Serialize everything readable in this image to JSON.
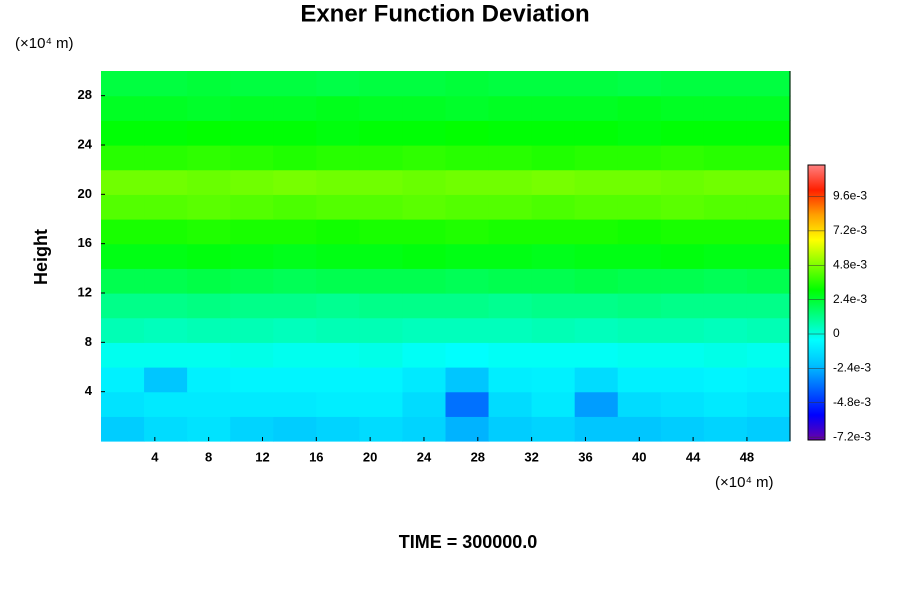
{
  "chart_data": {
    "type": "contour",
    "title": "Exner Function Deviation",
    "ylabel": "Height",
    "x_unit": "(×10⁴ m)",
    "y_unit": "(×10⁴ m)",
    "footer": "TIME = 300000.0",
    "x": [
      1.6,
      4.8,
      8.0,
      11.2,
      14.4,
      17.6,
      20.8,
      24.0,
      27.2,
      30.4,
      33.6,
      36.8,
      40.0,
      43.2,
      46.4,
      49.6
    ],
    "y": [
      1,
      3,
      5,
      7,
      9,
      11,
      13,
      15,
      17,
      19,
      21,
      23,
      25,
      27,
      29
    ],
    "z": [
      [
        -0.0018,
        -0.0014,
        -0.0012,
        -0.0016,
        -0.0018,
        -0.0016,
        -0.0014,
        -0.0016,
        -0.0024,
        -0.0018,
        -0.0016,
        -0.002,
        -0.002,
        -0.0018,
        -0.0016,
        -0.0018
      ],
      [
        -0.0012,
        -0.001,
        -0.001,
        -0.001,
        -0.001,
        -0.0009,
        -0.0009,
        -0.0014,
        -0.0036,
        -0.0014,
        -0.001,
        -0.0028,
        -0.0014,
        -0.0012,
        -0.001,
        -0.0012
      ],
      [
        -0.0008,
        -0.002,
        -0.0008,
        -0.0007,
        -0.0007,
        -0.0007,
        -0.0007,
        -0.001,
        -0.002,
        -0.0009,
        -0.0008,
        -0.0014,
        -0.0008,
        -0.0008,
        -0.0007,
        -0.0008
      ],
      [
        -0.0002,
        -0.0002,
        -0.0002,
        -0.0001,
        -0.0002,
        -0.0002,
        -0.0001,
        -0.0003,
        -0.0004,
        -0.0003,
        -0.0003,
        -0.0003,
        -0.0002,
        -0.0002,
        -0.0001,
        -0.0002
      ],
      [
        0.0006,
        0.0005,
        0.0006,
        0.0006,
        0.0005,
        0.0006,
        0.0006,
        0.0005,
        0.0005,
        0.0005,
        0.0006,
        0.0005,
        0.0006,
        0.0006,
        0.0005,
        0.0006
      ],
      [
        0.0012,
        0.0012,
        0.0013,
        0.0012,
        0.0012,
        0.0011,
        0.0012,
        0.0012,
        0.0012,
        0.0011,
        0.0012,
        0.0012,
        0.0013,
        0.0012,
        0.0012,
        0.0012
      ],
      [
        0.002,
        0.002,
        0.0021,
        0.002,
        0.0019,
        0.002,
        0.002,
        0.002,
        0.0019,
        0.002,
        0.002,
        0.0021,
        0.002,
        0.002,
        0.0019,
        0.002
      ],
      [
        0.0028,
        0.0028,
        0.0029,
        0.0028,
        0.0027,
        0.0028,
        0.0028,
        0.0029,
        0.0028,
        0.0028,
        0.0027,
        0.0028,
        0.0028,
        0.0029,
        0.0028,
        0.0028
      ],
      [
        0.0034,
        0.0034,
        0.0035,
        0.0034,
        0.0034,
        0.0033,
        0.0034,
        0.0034,
        0.0035,
        0.0034,
        0.0034,
        0.0034,
        0.0033,
        0.0034,
        0.0034,
        0.0034
      ],
      [
        0.0042,
        0.0042,
        0.0043,
        0.0042,
        0.0041,
        0.0042,
        0.0042,
        0.0043,
        0.0042,
        0.0042,
        0.0041,
        0.0042,
        0.0042,
        0.0043,
        0.0042,
        0.0042
      ],
      [
        0.0046,
        0.0046,
        0.0045,
        0.0046,
        0.0047,
        0.0046,
        0.0046,
        0.0045,
        0.0046,
        0.0046,
        0.0047,
        0.0046,
        0.0046,
        0.0045,
        0.0046,
        0.0046
      ],
      [
        0.0036,
        0.0036,
        0.0037,
        0.0036,
        0.0035,
        0.0036,
        0.0036,
        0.0037,
        0.0036,
        0.0036,
        0.0035,
        0.0036,
        0.0036,
        0.0037,
        0.0036,
        0.0036
      ],
      [
        0.003,
        0.003,
        0.0031,
        0.003,
        0.003,
        0.0029,
        0.003,
        0.003,
        0.0031,
        0.003,
        0.003,
        0.003,
        0.0029,
        0.003,
        0.003,
        0.003
      ],
      [
        0.0026,
        0.0026,
        0.0025,
        0.0026,
        0.0026,
        0.0027,
        0.0026,
        0.0026,
        0.0025,
        0.0026,
        0.0026,
        0.0026,
        0.0027,
        0.0026,
        0.0026,
        0.0026
      ],
      [
        0.0022,
        0.0022,
        0.0023,
        0.0022,
        0.0022,
        0.0021,
        0.0022,
        0.0022,
        0.0023,
        0.0022,
        0.0022,
        0.0022,
        0.0021,
        0.0022,
        0.0022,
        0.0022
      ]
    ],
    "xlim": [
      0,
      51.2
    ],
    "ylim": [
      0,
      30
    ],
    "xticks": [
      4,
      8,
      12,
      16,
      20,
      24,
      28,
      32,
      36,
      40,
      44,
      48
    ],
    "yticks": [
      4,
      8,
      12,
      16,
      20,
      24,
      28
    ],
    "clim": [
      -0.0074,
      0.0118
    ],
    "cticks": [
      {
        "value": -0.0072,
        "label": "-7.2e-3"
      },
      {
        "value": -0.0048,
        "label": "-4.8e-3"
      },
      {
        "value": -0.0024,
        "label": "-2.4e-3"
      },
      0,
      {
        "value": 0.0024,
        "label": "2.4e-3"
      },
      {
        "value": 0.0048,
        "label": "4.8e-3"
      },
      {
        "value": 0.0072,
        "label": "7.2e-3"
      },
      {
        "value": 0.0096,
        "label": "9.6e-3"
      }
    ],
    "colorscale": [
      "#6a00a8",
      "#0000ff",
      "#0060ff",
      "#00c0ff",
      "#00ffff",
      "#00ff80",
      "#00ff00",
      "#80ff00",
      "#ffff00",
      "#ffa000",
      "#ff2000",
      "#ff8080"
    ]
  }
}
